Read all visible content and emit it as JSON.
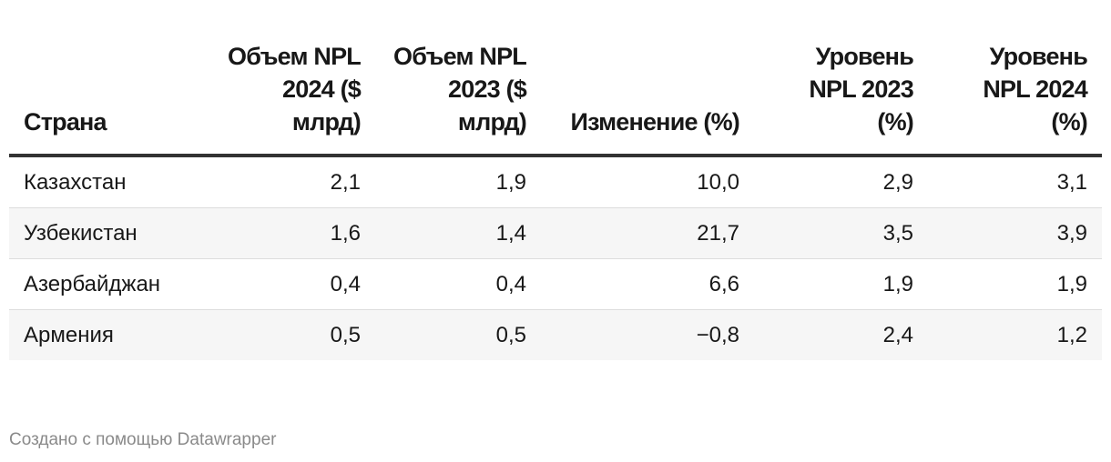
{
  "chart_data": {
    "type": "table",
    "columns": [
      "Страна",
      "Объем NPL 2024 ($ млрд)",
      "Объем NPL 2023 ($ млрд)",
      "Изменение (%)",
      "Уровень NPL 2023 (%)",
      "Уровень NPL 2024 (%)"
    ],
    "rows": [
      [
        "Казахстан",
        "2,1",
        "1,9",
        "10,0",
        "2,9",
        "3,1"
      ],
      [
        "Узбекистан",
        "1,6",
        "1,4",
        "21,7",
        "3,5",
        "3,9"
      ],
      [
        "Азербайджан",
        "0,4",
        "0,4",
        "6,6",
        "1,9",
        "1,9"
      ],
      [
        "Армения",
        "0,5",
        "0,5",
        "−0,8",
        "2,4",
        "1,2"
      ]
    ]
  },
  "footer": "Создано с помощью Datawrapper"
}
